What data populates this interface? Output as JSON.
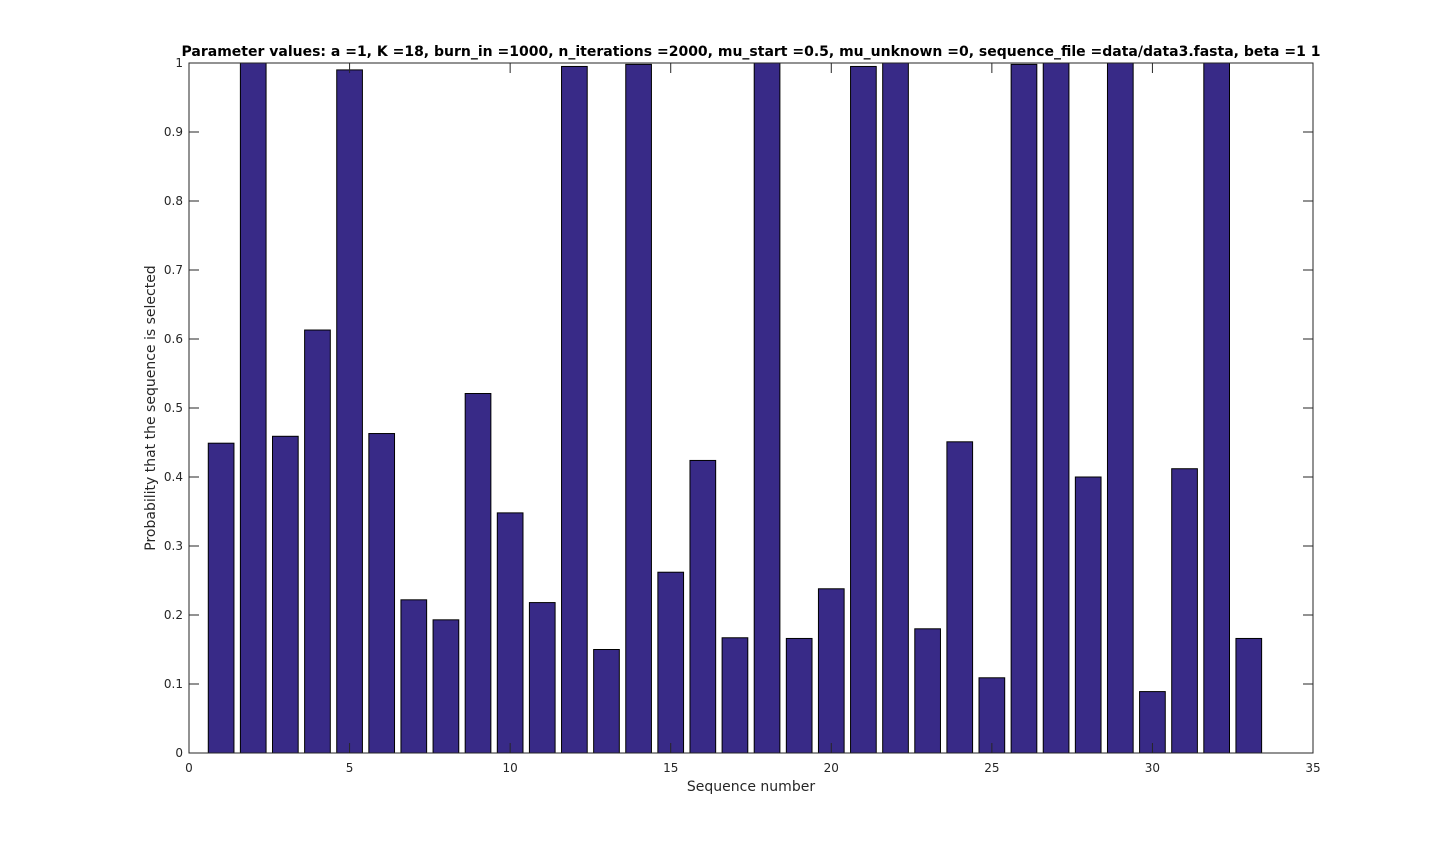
{
  "chart_data": {
    "type": "bar",
    "title": "Parameter values: a =1, K =18, burn_in =1000, n_iterations =2000, mu_start =0.5, mu_unknown =0, sequence_file =data/data3.fasta, beta =1  1",
    "xlabel": "Sequence number",
    "ylabel": "Probability that the sequence is selected",
    "xlim": [
      0,
      35
    ],
    "ylim": [
      0,
      1
    ],
    "xticks": [
      0,
      5,
      10,
      15,
      20,
      25,
      30,
      35
    ],
    "yticks": [
      0,
      0.1,
      0.2,
      0.3,
      0.4,
      0.5,
      0.6,
      0.7,
      0.8,
      0.9,
      1
    ],
    "xtick_labels": [
      "0",
      "5",
      "10",
      "15",
      "20",
      "25",
      "30",
      "35"
    ],
    "ytick_labels": [
      "0",
      "0.1",
      "0.2",
      "0.3",
      "0.4",
      "0.5",
      "0.6",
      "0.7",
      "0.8",
      "0.9",
      "1"
    ],
    "categories": [
      1,
      2,
      3,
      4,
      5,
      6,
      7,
      8,
      9,
      10,
      11,
      12,
      13,
      14,
      15,
      16,
      17,
      18,
      19,
      20,
      21,
      22,
      23,
      24,
      25,
      26,
      27,
      28,
      29,
      30,
      31,
      32,
      33
    ],
    "values": [
      0.449,
      1.0,
      0.459,
      0.613,
      0.99,
      0.463,
      0.222,
      0.193,
      0.521,
      0.348,
      0.218,
      0.995,
      0.15,
      0.998,
      0.262,
      0.424,
      0.167,
      1.0,
      0.166,
      0.238,
      0.995,
      1.0,
      0.18,
      0.451,
      0.109,
      0.998,
      1.0,
      0.4,
      1.0,
      0.089,
      0.412,
      1.0,
      0.166
    ],
    "bar_color": "#382a87",
    "bar_edge_color": "#000000",
    "axes_color": "#262626",
    "grid": false,
    "legend": false
  }
}
